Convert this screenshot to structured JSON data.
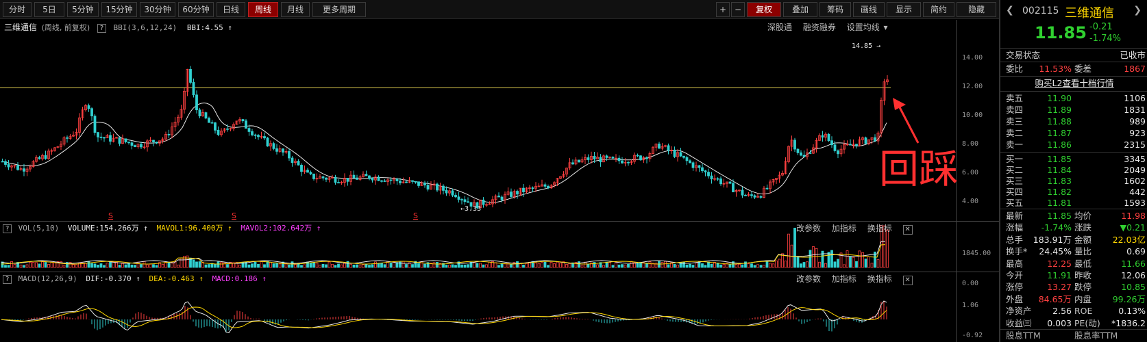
{
  "toolbar": {
    "periods": [
      "分时",
      "5日",
      "5分钟",
      "15分钟",
      "30分钟",
      "60分钟",
      "日线",
      "周线",
      "月线",
      "更多周期"
    ],
    "active_index": 7,
    "right_buttons": [
      "+",
      "−",
      "复权",
      "叠加",
      "筹码",
      "画线",
      "显示",
      "简约",
      "隐藏"
    ]
  },
  "main_pane": {
    "stock_name": "三维通信",
    "subtitle": "(周线, 前复权)",
    "indicator": "BBI(3,6,12,24)",
    "bbi_value": "BBI:4.55",
    "tools": [
      "深股通",
      "融资融券",
      "设置均线"
    ],
    "y_labels": [
      "14.00",
      "12.00",
      "10.00",
      "8.00",
      "6.00",
      "4.00"
    ],
    "high_label": "14.85",
    "low_label": "3.33",
    "annotation": "回踩",
    "marker": "S"
  },
  "vol_pane": {
    "title": "VOL(5,10)",
    "volume": "VOLUME:154.266万",
    "mavol1": "MAVOL1:96.400万",
    "mavol2": "MAVOL2:102.642万",
    "tools": [
      "改参数",
      "加指标",
      "换指标"
    ],
    "y_labels": [
      "1845.00",
      "0.00"
    ]
  },
  "macd_pane": {
    "title": "MACD(12,26,9)",
    "dif": "DIF:-0.370",
    "dea": "DEA:-0.463",
    "macd": "MACD:0.186",
    "tools": [
      "改参数",
      "加指标",
      "换指标"
    ],
    "y_labels": [
      "1.06",
      "-0.92"
    ]
  },
  "quote": {
    "code": "002115",
    "name": "三维通信",
    "price": "11.85",
    "change": "-0.21",
    "pct": "-1.74%",
    "status_label": "交易状态",
    "status_value": "已收市",
    "webi_label": "委比",
    "webi_value": "11.53%",
    "weicha_label": "委差",
    "weicha_value": "1867",
    "l2_link": "购买L2查看十档行情",
    "asks": [
      {
        "label": "卖五",
        "price": "11.90",
        "vol": "1106"
      },
      {
        "label": "卖四",
        "price": "11.89",
        "vol": "1831"
      },
      {
        "label": "卖三",
        "price": "11.88",
        "vol": "989"
      },
      {
        "label": "卖二",
        "price": "11.87",
        "vol": "923"
      },
      {
        "label": "卖一",
        "price": "11.86",
        "vol": "2315"
      }
    ],
    "bids": [
      {
        "label": "买一",
        "price": "11.85",
        "vol": "3345"
      },
      {
        "label": "买二",
        "price": "11.84",
        "vol": "2049"
      },
      {
        "label": "买三",
        "price": "11.83",
        "vol": "1602"
      },
      {
        "label": "买四",
        "price": "11.82",
        "vol": "442"
      },
      {
        "label": "买五",
        "price": "11.81",
        "vol": "1593"
      }
    ],
    "stats": [
      {
        "l1": "最新",
        "v1": "11.85",
        "c1": "dn",
        "l2": "均价",
        "v2": "11.98",
        "c2": "up"
      },
      {
        "l1": "涨幅",
        "v1": "-1.74%",
        "c1": "dn",
        "l2": "涨跌",
        "v2": "▼0.21",
        "c2": "dn"
      },
      {
        "l1": "总手",
        "v1": "183.91万",
        "c1": "wt",
        "l2": "金额",
        "v2": "22.03亿",
        "c2": "yl"
      },
      {
        "l1": "换手*",
        "v1": "24.45%",
        "c1": "wt",
        "l2": "量比",
        "v2": "0.69",
        "c2": "wt"
      },
      {
        "l1": "最高",
        "v1": "12.25",
        "c1": "up",
        "l2": "最低",
        "v2": "11.66",
        "c2": "dn"
      },
      {
        "l1": "今开",
        "v1": "11.91",
        "c1": "dn",
        "l2": "昨收",
        "v2": "12.06",
        "c2": "wt"
      },
      {
        "l1": "涨停",
        "v1": "13.27",
        "c1": "up",
        "l2": "跌停",
        "v2": "10.85",
        "c2": "dn"
      },
      {
        "l1": "外盘",
        "v1": "84.65万",
        "c1": "up",
        "l2": "内盘",
        "v2": "99.26万",
        "c2": "dn"
      },
      {
        "l1": "净资产",
        "v1": "2.56",
        "c1": "wt",
        "l2": "ROE",
        "v2": "0.13%",
        "c2": "wt"
      },
      {
        "l1": "收益㈢",
        "v1": "0.003",
        "c1": "wt",
        "l2": "PE(动)",
        "v2": "*1836.2",
        "c2": "wt"
      }
    ],
    "footer1": "股息TTM",
    "footer2": "股息率TTM"
  },
  "colors": {
    "up": "#ff4040",
    "down": "#30d0d0",
    "hline": "#d4c24a",
    "ma": "#e8e8e8"
  }
}
